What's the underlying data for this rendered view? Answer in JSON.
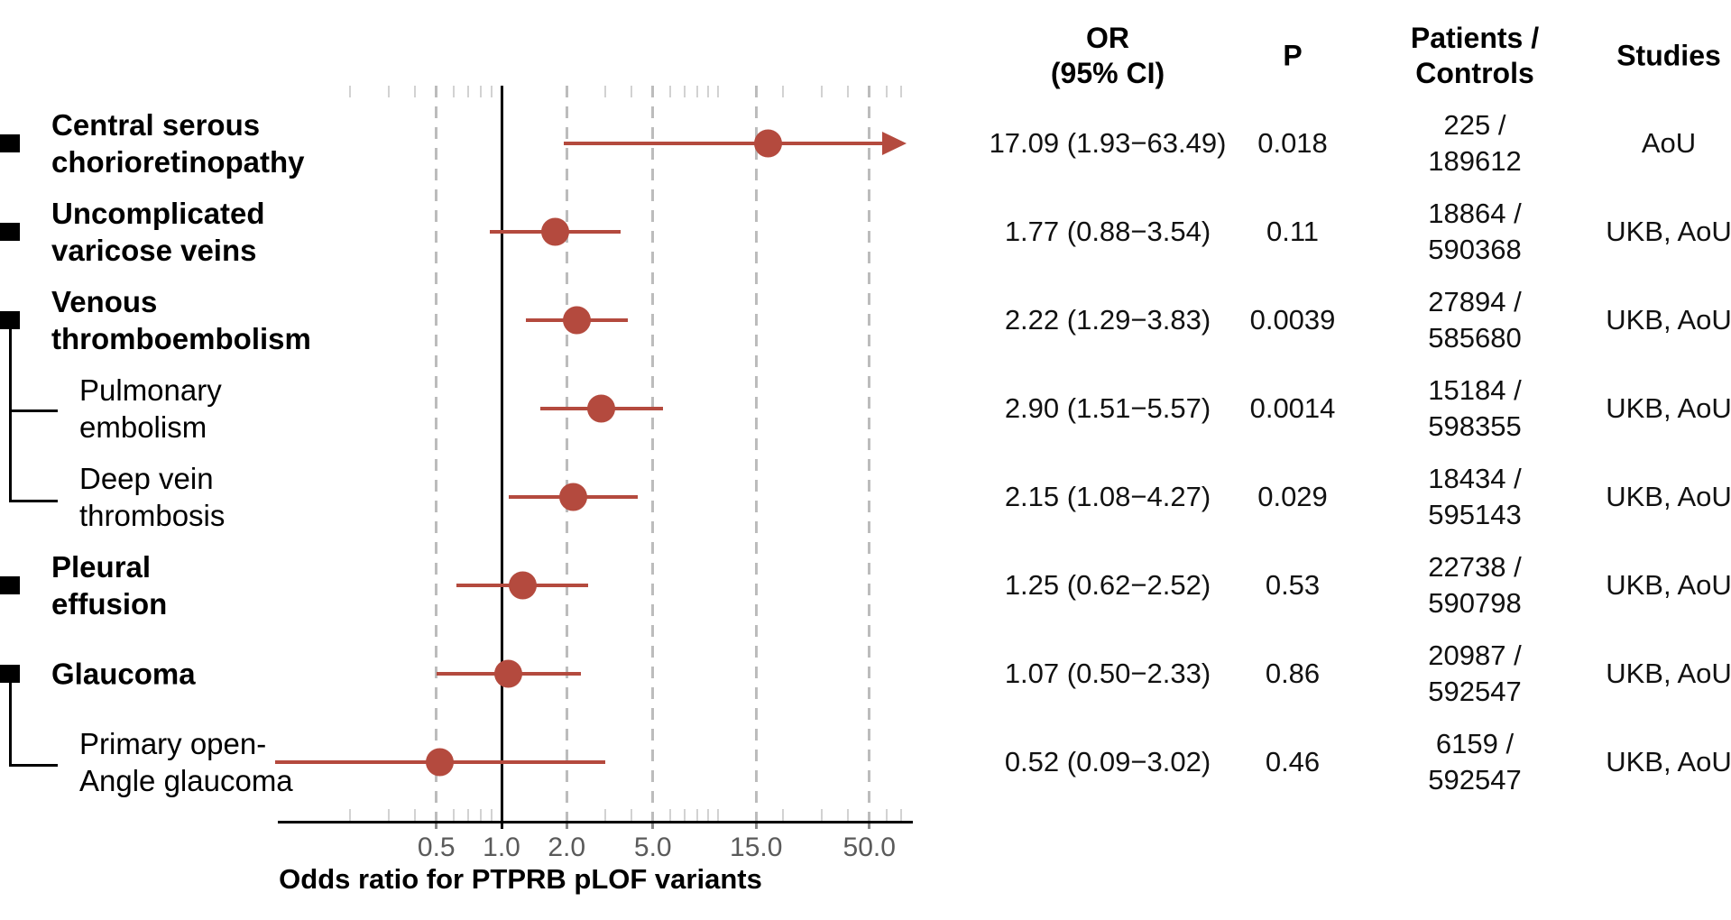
{
  "accent_color": "#b44a3e",
  "left_panel": {
    "rows": [
      {
        "line1": "Central serous",
        "line2": "chorioretinopathy",
        "bold": true,
        "indent": false,
        "square": true
      },
      {
        "line1": "Uncomplicated",
        "line2": "varicose veins",
        "bold": true,
        "indent": false,
        "square": true
      },
      {
        "line1": "Venous",
        "line2": "thromboembolism",
        "bold": true,
        "indent": false,
        "square": true
      },
      {
        "line1": "Pulmonary",
        "line2": "embolism",
        "bold": false,
        "indent": true,
        "square": false
      },
      {
        "line1": "Deep vein",
        "line2": "thrombosis",
        "bold": false,
        "indent": true,
        "square": false
      },
      {
        "line1": "Pleural",
        "line2": "effusion",
        "bold": true,
        "indent": false,
        "square": true
      },
      {
        "line1": "Glaucoma",
        "bold": true,
        "indent": false,
        "square": true
      },
      {
        "line1": "Primary open-",
        "line2": "Angle glaucoma",
        "bold": false,
        "indent": true,
        "square": false
      }
    ]
  },
  "table": {
    "headers": {
      "or_line1": "OR",
      "or_line2": "(95% CI)",
      "p": "P",
      "patients_line1": "Patients /",
      "patients_line2": "Controls",
      "studies": "Studies"
    },
    "rows": [
      {
        "or": "17.09 (1.93−63.49)",
        "p": "0.018",
        "patients": "225 /",
        "controls": "189612",
        "studies": "AoU"
      },
      {
        "or": "1.77 (0.88−3.54)",
        "p": "0.11",
        "patients": "18864 /",
        "controls": "590368",
        "studies": "UKB, AoU"
      },
      {
        "or": "2.22 (1.29−3.83)",
        "p": "0.0039",
        "patients": "27894 /",
        "controls": "585680",
        "studies": "UKB, AoU"
      },
      {
        "or": "2.90 (1.51−5.57)",
        "p": "0.0014",
        "patients": "15184 /",
        "controls": "598355",
        "studies": "UKB, AoU"
      },
      {
        "or": "2.15 (1.08−4.27)",
        "p": "0.029",
        "patients": "18434 /",
        "controls": "595143",
        "studies": "UKB, AoU"
      },
      {
        "or": "1.25 (0.62−2.52)",
        "p": "0.53",
        "patients": "22738 /",
        "controls": "590798",
        "studies": "UKB, AoU"
      },
      {
        "or": "1.07 (0.50−2.33)",
        "p": "0.86",
        "patients": "20987 /",
        "controls": "592547",
        "studies": "UKB, AoU"
      },
      {
        "or": "0.52 (0.09−3.02)",
        "p": "0.46",
        "patients": "6159 /",
        "controls": "592547",
        "studies": "UKB, AoU"
      }
    ]
  },
  "chart_data": {
    "type": "scatter",
    "subtype": "forest-plot",
    "xlabel": "Odds ratio for PTPRB pLOF variants",
    "x_scale": "log",
    "xlim": [
      0.1,
      70
    ],
    "x_ticks": [
      0.5,
      1.0,
      2.0,
      5.0,
      15.0,
      50.0
    ],
    "x_tick_labels": [
      "0.5",
      "1.0",
      "2.0",
      "5.0",
      "15.0",
      "50.0"
    ],
    "reference_line": 1.0,
    "grid": "dashed-vertical-at-ticks",
    "marker_color": "#b44a3e",
    "rows": [
      {
        "label": "Central serous chorioretinopathy",
        "or": 17.09,
        "ci_low": 1.93,
        "ci_high": 63.49,
        "p": "0.018",
        "clipped_right": true
      },
      {
        "label": "Uncomplicated varicose veins",
        "or": 1.77,
        "ci_low": 0.88,
        "ci_high": 3.54,
        "p": "0.11",
        "clipped_right": false
      },
      {
        "label": "Venous thromboembolism",
        "or": 2.22,
        "ci_low": 1.29,
        "ci_high": 3.83,
        "p": "0.0039",
        "clipped_right": false
      },
      {
        "label": "Pulmonary embolism",
        "or": 2.9,
        "ci_low": 1.51,
        "ci_high": 5.57,
        "p": "0.0014",
        "clipped_right": false
      },
      {
        "label": "Deep vein thrombosis",
        "or": 2.15,
        "ci_low": 1.08,
        "ci_high": 4.27,
        "p": "0.029",
        "clipped_right": false
      },
      {
        "label": "Pleural effusion",
        "or": 1.25,
        "ci_low": 0.62,
        "ci_high": 2.52,
        "p": "0.53",
        "clipped_right": false
      },
      {
        "label": "Glaucoma",
        "or": 1.07,
        "ci_low": 0.5,
        "ci_high": 2.33,
        "p": "0.86",
        "clipped_right": false
      },
      {
        "label": "Primary open-Angle glaucoma",
        "or": 0.52,
        "ci_low": 0.09,
        "ci_high": 3.02,
        "p": "0.46",
        "clipped_right": false
      }
    ]
  }
}
